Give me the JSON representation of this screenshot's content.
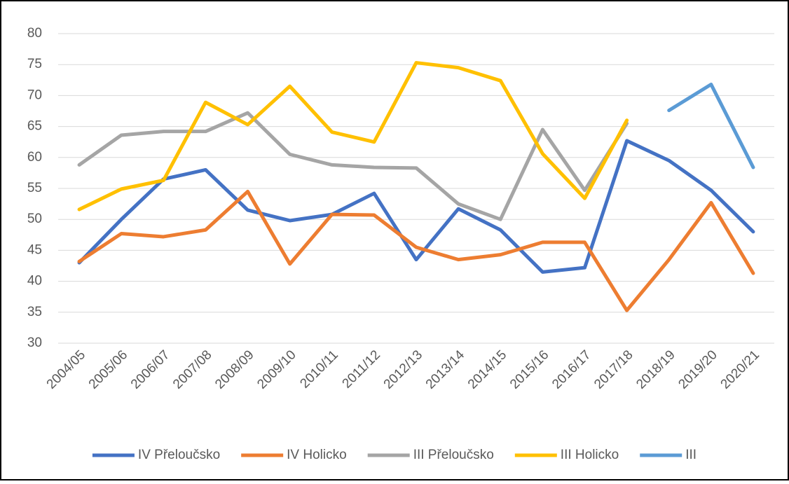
{
  "chart_data": {
    "type": "line",
    "categories": [
      "2004/05",
      "2005/06",
      "2006/07",
      "2007/08",
      "2008/09",
      "2009/10",
      "2010/11",
      "2011/12",
      "2012/13",
      "2013/14",
      "2014/15",
      "2015/16",
      "2016/17",
      "2017/18",
      "2018/19",
      "2019/20",
      "2020/21"
    ],
    "series": [
      {
        "name": "IV Přeloučsko",
        "color": "#4472c4",
        "values": [
          43,
          50,
          56.5,
          58,
          51.5,
          49.8,
          50.8,
          54.2,
          43.5,
          51.7,
          48.3,
          41.5,
          42.2,
          62.7,
          59.5,
          54.7,
          48
        ]
      },
      {
        "name": "IV Holicko",
        "color": "#ed7d31",
        "values": [
          43.2,
          47.7,
          47.2,
          48.3,
          54.5,
          42.8,
          50.8,
          50.7,
          45.5,
          43.5,
          44.3,
          46.3,
          46.3,
          35.3,
          43.5,
          52.7,
          41.3
        ]
      },
      {
        "name": "III Přeloučsko",
        "color": "#a5a5a5",
        "values": [
          58.8,
          63.6,
          64.2,
          64.2,
          67.2,
          60.5,
          58.8,
          58.4,
          58.3,
          52.5,
          50,
          64.5,
          54.7,
          65.5,
          null,
          null,
          null
        ]
      },
      {
        "name": "III Holicko",
        "color": "#ffc000",
        "values": [
          51.6,
          54.9,
          56.3,
          68.9,
          65.3,
          71.5,
          64.1,
          62.5,
          75.3,
          74.5,
          72.4,
          60.6,
          53.4,
          66,
          null,
          null,
          null
        ]
      },
      {
        "name": "III",
        "color": "#5b9bd5",
        "values": [
          null,
          null,
          null,
          null,
          null,
          null,
          null,
          null,
          null,
          null,
          null,
          null,
          null,
          null,
          67.6,
          71.8,
          58.4
        ]
      }
    ],
    "ylim": [
      30,
      80
    ],
    "yticks": [
      30,
      35,
      40,
      45,
      50,
      55,
      60,
      65,
      70,
      75,
      80
    ],
    "grid": true,
    "legend": "bottom"
  }
}
